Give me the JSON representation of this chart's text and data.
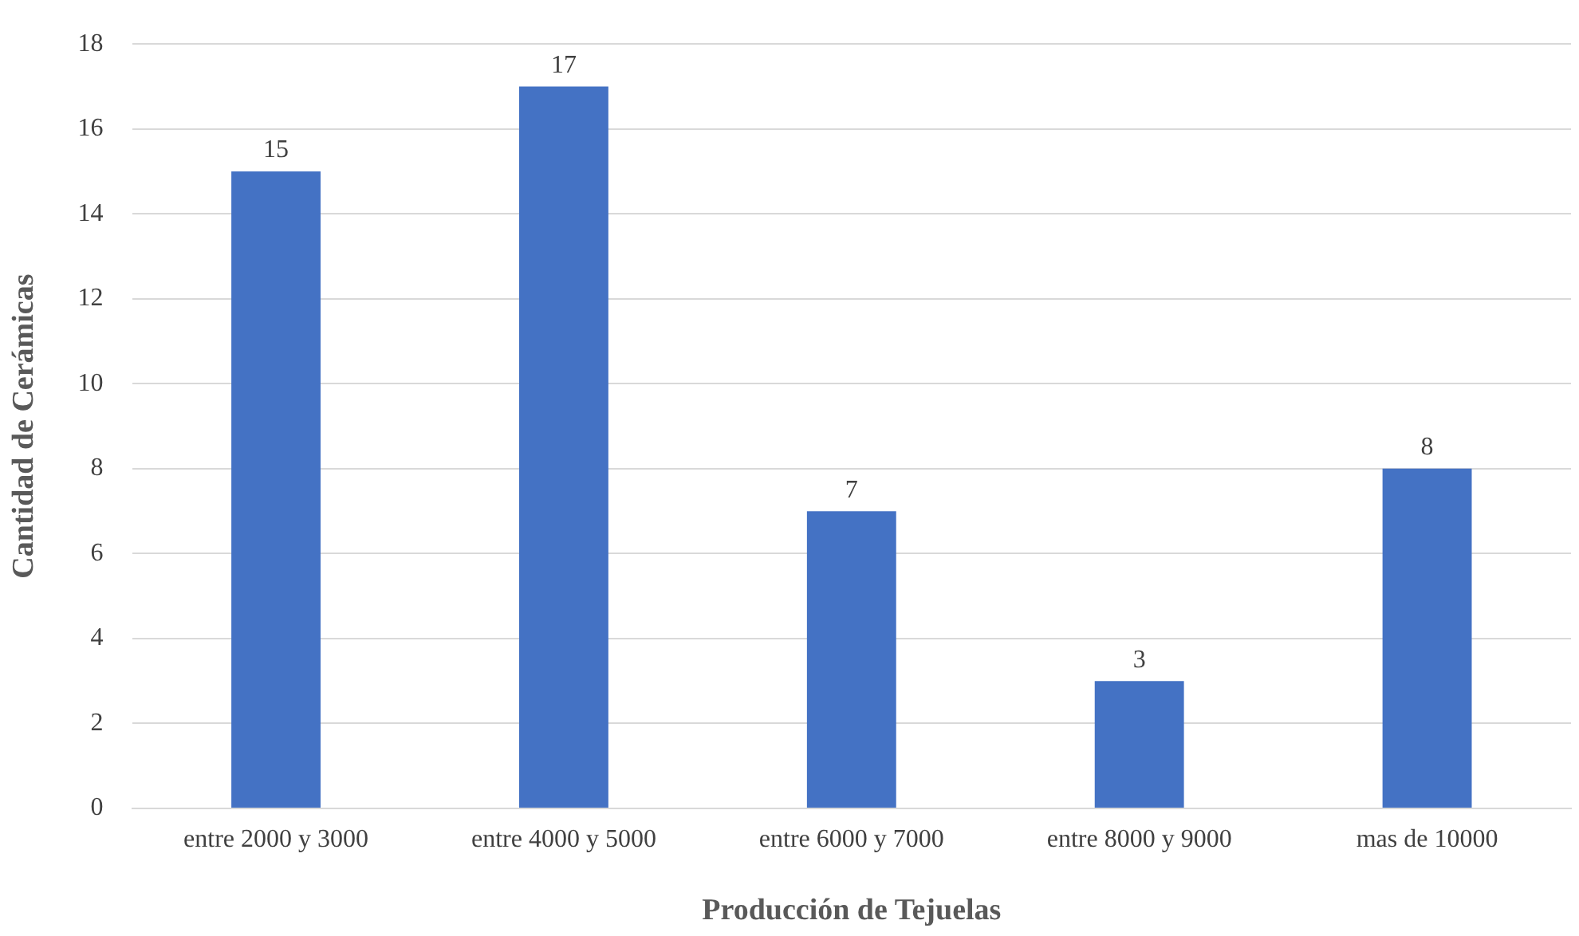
{
  "chart_data": {
    "type": "bar",
    "xlabel": "Producción de Tejuelas",
    "ylabel": "Cantidad de Cerámicas",
    "categories": [
      "entre 2000 y 3000",
      "entre 4000 y 5000",
      "entre 6000 y 7000",
      "entre 8000 y 9000",
      "mas de 10000"
    ],
    "values": [
      15,
      17,
      7,
      3,
      8
    ],
    "color": "#4472c4",
    "ylim": [
      0,
      18
    ],
    "yticks": [
      0,
      2,
      4,
      6,
      8,
      10,
      12,
      14,
      16,
      18
    ],
    "grid": "y",
    "data_labels": true,
    "legend": false
  }
}
